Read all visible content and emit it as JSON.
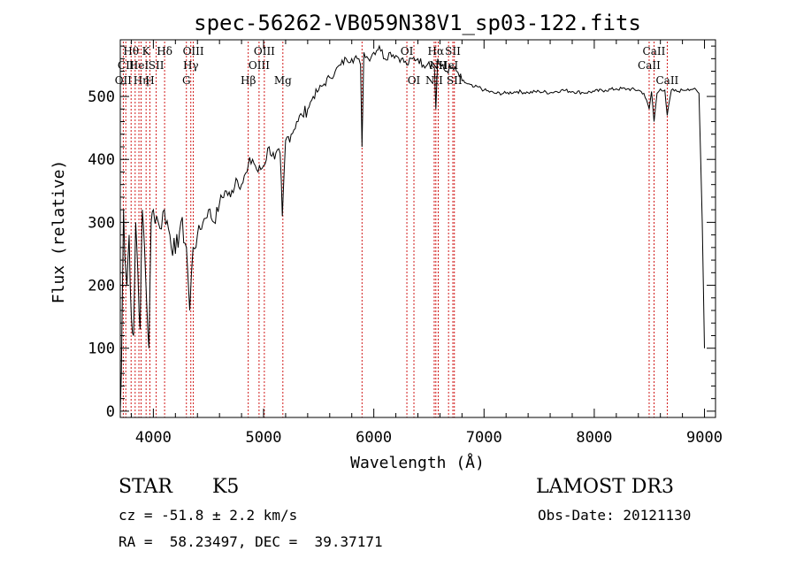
{
  "chart_data": {
    "type": "line",
    "title": "spec-56262-VB059N38V1_sp03-122.fits",
    "xlabel": "Wavelength (Å)",
    "ylabel": "Flux (relative)",
    "xlim": [
      3700,
      9100
    ],
    "ylim": [
      -10,
      590
    ],
    "x_ticks": [
      4000,
      5000,
      6000,
      7000,
      8000,
      9000
    ],
    "y_ticks": [
      0,
      100,
      200,
      300,
      400,
      500
    ],
    "line_color": "#000000",
    "marker_color": "#cc0000",
    "series": [
      {
        "x": [
          3700,
          3710,
          3720,
          3730,
          3740,
          3760,
          3780,
          3800,
          3820,
          3840,
          3860,
          3880,
          3900,
          3920,
          3940,
          3960,
          3980,
          4000,
          4030,
          4060,
          4100,
          4150,
          4200,
          4250,
          4300,
          4330,
          4360,
          4400,
          4450,
          4500,
          4550,
          4600,
          4650,
          4700,
          4750,
          4800,
          4850,
          4860,
          4900,
          4950,
          5000,
          5050,
          5100,
          5150,
          5170,
          5200,
          5250,
          5300,
          5350,
          5400,
          5450,
          5500,
          5550,
          5600,
          5650,
          5700,
          5750,
          5800,
          5850,
          5880,
          5893,
          5910,
          5950,
          6000,
          6050,
          6100,
          6150,
          6200,
          6250,
          6300,
          6350,
          6400,
          6450,
          6500,
          6550,
          6563,
          6580,
          6600,
          6650,
          6700,
          6750,
          6800,
          6850,
          6900,
          6950,
          7000,
          7100,
          7200,
          7300,
          7400,
          7500,
          7600,
          7700,
          7800,
          7900,
          8000,
          8100,
          8200,
          8300,
          8400,
          8450,
          8498,
          8520,
          8542,
          8570,
          8600,
          8640,
          8662,
          8700,
          8750,
          8800,
          8850,
          8900,
          8950,
          8980,
          9000
        ],
        "values": [
          0,
          60,
          200,
          320,
          250,
          200,
          280,
          150,
          120,
          300,
          220,
          130,
          320,
          260,
          170,
          100,
          300,
          320,
          310,
          290,
          320,
          280,
          250,
          300,
          260,
          160,
          260,
          280,
          300,
          320,
          300,
          330,
          350,
          340,
          370,
          360,
          380,
          390,
          400,
          380,
          390,
          420,
          400,
          410,
          310,
          430,
          440,
          460,
          470,
          480,
          500,
          510,
          520,
          530,
          540,
          550,
          560,
          560,
          560,
          550,
          420,
          570,
          560,
          570,
          580,
          560,
          570,
          565,
          560,
          550,
          560,
          560,
          550,
          555,
          545,
          480,
          560,
          550,
          540,
          545,
          540,
          525,
          520,
          515,
          515,
          510,
          505,
          505,
          508,
          506,
          508,
          506,
          510,
          508,
          506,
          508,
          510,
          512,
          512,
          510,
          505,
          480,
          508,
          460,
          505,
          512,
          510,
          470,
          510,
          508,
          510,
          512,
          512,
          505,
          300,
          100
        ]
      }
    ],
    "line_markers": [
      {
        "wl": 3727,
        "label": "OII",
        "row": 2
      },
      {
        "wl": 3750,
        "label": "CII",
        "row": 1
      },
      {
        "wl": 3798,
        "label": "Hθ",
        "row": 0
      },
      {
        "wl": 3835,
        "label": "",
        "row": 0
      },
      {
        "wl": 3869,
        "label": "HeI",
        "row": 1
      },
      {
        "wl": 3889,
        "label": "Hη",
        "row": 2
      },
      {
        "wl": 3934,
        "label": "K",
        "row": 0
      },
      {
        "wl": 3969,
        "label": "H",
        "row": 2
      },
      {
        "wl": 4026,
        "label": "SII",
        "row": 1
      },
      {
        "wl": 4102,
        "label": "Hδ",
        "row": 0
      },
      {
        "wl": 4300,
        "label": "G",
        "row": 2
      },
      {
        "wl": 4340,
        "label": "Hγ",
        "row": 1
      },
      {
        "wl": 4363,
        "label": "OIII",
        "row": 0
      },
      {
        "wl": 4861,
        "label": "Hβ",
        "row": 2
      },
      {
        "wl": 4959,
        "label": "OIII",
        "row": 1
      },
      {
        "wl": 5007,
        "label": "OIII",
        "row": 0
      },
      {
        "wl": 5175,
        "label": "Mg",
        "row": 2
      },
      {
        "wl": 5893,
        "label": "",
        "row": 0
      },
      {
        "wl": 6300,
        "label": "OI",
        "row": 0
      },
      {
        "wl": 6364,
        "label": "OI",
        "row": 2
      },
      {
        "wl": 6548,
        "label": "NII",
        "row": 2
      },
      {
        "wl": 6563,
        "label": "Hα",
        "row": 0
      },
      {
        "wl": 6584,
        "label": "NII",
        "row": 1
      },
      {
        "wl": 6678,
        "label": "HeI",
        "row": 1
      },
      {
        "wl": 6717,
        "label": "SII",
        "row": 0
      },
      {
        "wl": 6731,
        "label": "SII",
        "row": 2
      },
      {
        "wl": 8498,
        "label": "CaII",
        "row": 1
      },
      {
        "wl": 8542,
        "label": "CaII",
        "row": 0
      },
      {
        "wl": 8662,
        "label": "CaII",
        "row": 2
      }
    ]
  },
  "info": {
    "class": "STAR",
    "subclass": "K5",
    "survey": "LAMOST DR3",
    "cz": "cz = -51.8 ± 2.2 km/s",
    "obs_date": "Obs-Date: 20121130",
    "coords": "RA =  58.23497, DEC =  39.37171"
  }
}
